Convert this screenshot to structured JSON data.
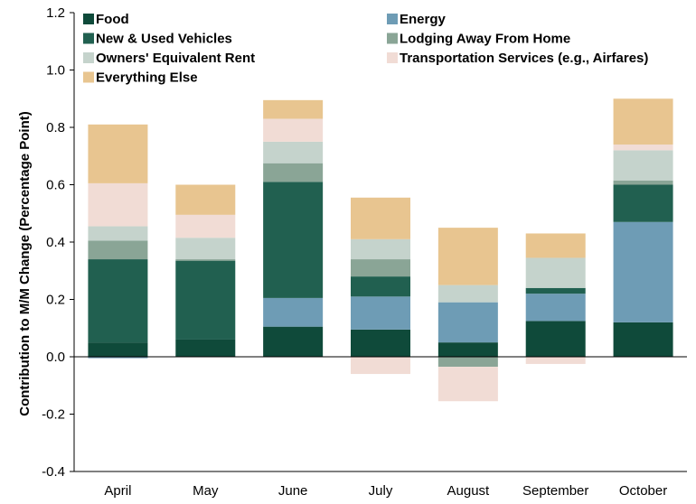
{
  "chart_data": {
    "type": "bar",
    "stacked": true,
    "title": "",
    "xlabel": "",
    "ylabel": "Contribution to M/M Change (Percentage Point)",
    "ylim": [
      -0.4,
      1.2
    ],
    "yticks": [
      -0.4,
      -0.2,
      0.0,
      0.2,
      0.4,
      0.6,
      0.8,
      1.0,
      1.2
    ],
    "ytick_labels": [
      "-0.4",
      "-0.2",
      "0.0",
      "0.2",
      "0.4",
      "0.6",
      "0.8",
      "1.0",
      "1.2"
    ],
    "grid": false,
    "legend_position": "top",
    "categories": [
      "April",
      "May",
      "June",
      "July",
      "August",
      "September",
      "October"
    ],
    "series": [
      {
        "name": "Food",
        "color": "#0f4a3a",
        "values": [
          0.05,
          0.06,
          0.105,
          0.095,
          0.05,
          0.125,
          0.12
        ]
      },
      {
        "name": "Energy",
        "color": "#6e9cb5",
        "values": [
          -0.005,
          0.0,
          0.1,
          0.115,
          0.14,
          0.095,
          0.35
        ]
      },
      {
        "name": "New & Used Vehicles",
        "color": "#216050",
        "values": [
          0.29,
          0.275,
          0.405,
          0.07,
          0.0,
          0.02,
          0.13
        ]
      },
      {
        "name": "Lodging Away From Home",
        "color": "#8aa596",
        "values": [
          0.065,
          0.005,
          0.065,
          0.06,
          -0.035,
          0.0,
          0.015
        ]
      },
      {
        "name": "Owners' Equivalent Rent",
        "color": "#c5d3cc",
        "values": [
          0.05,
          0.075,
          0.075,
          0.07,
          0.06,
          0.105,
          0.105
        ]
      },
      {
        "name": "Transportation Services (e.g., Airfares)",
        "color": "#f1dcd5",
        "values": [
          0.15,
          0.08,
          0.08,
          -0.06,
          -0.12,
          -0.025,
          0.02
        ]
      },
      {
        "name": "Everything Else",
        "color": "#e8c590",
        "values": [
          0.205,
          0.105,
          0.065,
          0.145,
          0.2,
          0.085,
          0.16
        ]
      }
    ]
  }
}
